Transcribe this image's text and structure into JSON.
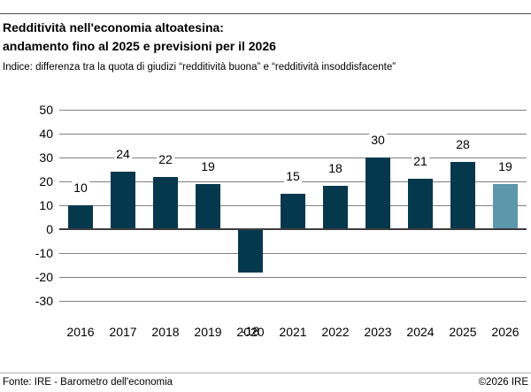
{
  "header": {
    "title_line1": "Redditività nell'economia altoatesina:",
    "title_line2": "andamento fino al 2025 e previsioni per il 2026",
    "subtitle": "Indice: differenza tra la quota di giudizi “redditività buona” e “redditività insoddisfacente”"
  },
  "chart_data": {
    "type": "bar",
    "categories": [
      "2016",
      "2017",
      "2018",
      "2019",
      "2020",
      "2021",
      "2022",
      "2023",
      "2024",
      "2025",
      "2026"
    ],
    "values": [
      10,
      24,
      22,
      19,
      -18,
      15,
      18,
      30,
      21,
      28,
      19
    ],
    "forecast_index": 10,
    "title": "Redditività nell'economia altoatesina: andamento fino al 2025 e previsioni per il 2026",
    "xlabel": "",
    "ylabel": "",
    "ylim": [
      -30,
      50
    ],
    "ytick_step": 10,
    "yticks": [
      50,
      40,
      30,
      20,
      10,
      0,
      -10,
      -20,
      -30
    ],
    "grid": true,
    "legend": false,
    "value_labels": true,
    "colors": {
      "bar_default": "#05384d",
      "bar_forecast": "#5d97ac",
      "gridline": "#808080",
      "zero_line": "#3d3d3d",
      "text": "#000000"
    }
  },
  "footer": {
    "source": "Fonte: IRE - Barometro dell'economia",
    "copyright": "©2026 IRE"
  }
}
